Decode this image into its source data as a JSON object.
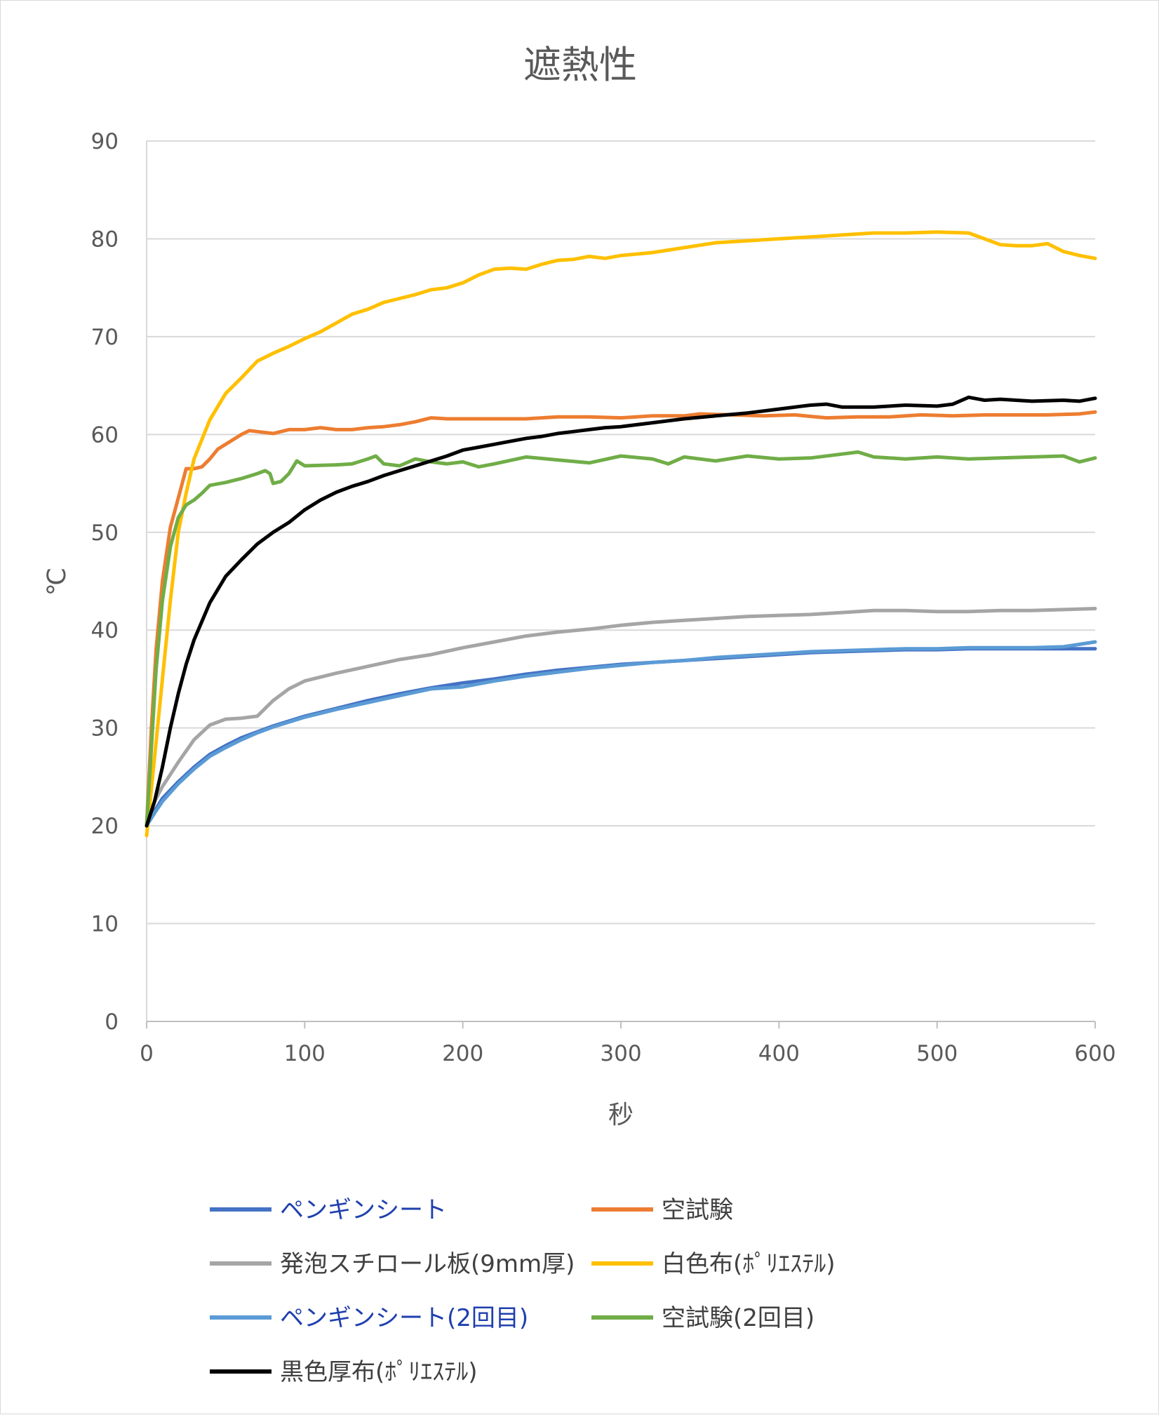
{
  "chart_data": {
    "type": "line",
    "title": "遮熱性",
    "xlabel": "秒",
    "ylabel": "℃",
    "xlim": [
      0,
      600
    ],
    "ylim": [
      0,
      90
    ],
    "xticks": [
      0,
      100,
      200,
      300,
      400,
      500,
      600
    ],
    "yticks": [
      0,
      10,
      20,
      30,
      40,
      50,
      60,
      70,
      80,
      90
    ],
    "grid": "horizontal",
    "legend_position": "bottom",
    "series": [
      {
        "name": "ペンギンシート",
        "color": "#4472c4",
        "label_color": "#1f3fae",
        "points": [
          [
            0,
            20
          ],
          [
            5,
            21.5
          ],
          [
            10,
            22.8
          ],
          [
            20,
            24.5
          ],
          [
            30,
            26
          ],
          [
            40,
            27.3
          ],
          [
            50,
            28.2
          ],
          [
            60,
            29
          ],
          [
            70,
            29.6
          ],
          [
            80,
            30.2
          ],
          [
            90,
            30.7
          ],
          [
            100,
            31.2
          ],
          [
            120,
            32
          ],
          [
            140,
            32.8
          ],
          [
            160,
            33.5
          ],
          [
            180,
            34.1
          ],
          [
            200,
            34.6
          ],
          [
            220,
            35
          ],
          [
            240,
            35.5
          ],
          [
            260,
            35.9
          ],
          [
            280,
            36.2
          ],
          [
            300,
            36.5
          ],
          [
            320,
            36.7
          ],
          [
            340,
            36.9
          ],
          [
            360,
            37.1
          ],
          [
            380,
            37.3
          ],
          [
            400,
            37.5
          ],
          [
            420,
            37.7
          ],
          [
            440,
            37.8
          ],
          [
            460,
            37.9
          ],
          [
            480,
            38
          ],
          [
            500,
            38
          ],
          [
            520,
            38.1
          ],
          [
            540,
            38.1
          ],
          [
            560,
            38.1
          ],
          [
            580,
            38.1
          ],
          [
            600,
            38.1
          ]
        ]
      },
      {
        "name": "空試験",
        "color": "#ed7d31",
        "points": [
          [
            0,
            20
          ],
          [
            3,
            30
          ],
          [
            6,
            38
          ],
          [
            10,
            45
          ],
          [
            15,
            50.5
          ],
          [
            20,
            53.5
          ],
          [
            25,
            56.5
          ],
          [
            30,
            56.5
          ],
          [
            35,
            56.7
          ],
          [
            40,
            57.5
          ],
          [
            45,
            58.5
          ],
          [
            50,
            59
          ],
          [
            60,
            60
          ],
          [
            65,
            60.4
          ],
          [
            70,
            60.3
          ],
          [
            80,
            60.1
          ],
          [
            90,
            60.5
          ],
          [
            100,
            60.5
          ],
          [
            110,
            60.7
          ],
          [
            120,
            60.5
          ],
          [
            130,
            60.5
          ],
          [
            140,
            60.7
          ],
          [
            150,
            60.8
          ],
          [
            160,
            61
          ],
          [
            170,
            61.3
          ],
          [
            180,
            61.7
          ],
          [
            190,
            61.6
          ],
          [
            200,
            61.6
          ],
          [
            220,
            61.6
          ],
          [
            240,
            61.6
          ],
          [
            260,
            61.8
          ],
          [
            280,
            61.8
          ],
          [
            300,
            61.7
          ],
          [
            320,
            61.9
          ],
          [
            340,
            61.9
          ],
          [
            350,
            62.1
          ],
          [
            370,
            62
          ],
          [
            390,
            61.9
          ],
          [
            410,
            62
          ],
          [
            430,
            61.7
          ],
          [
            450,
            61.8
          ],
          [
            470,
            61.8
          ],
          [
            490,
            62
          ],
          [
            510,
            61.9
          ],
          [
            530,
            62
          ],
          [
            550,
            62
          ],
          [
            570,
            62
          ],
          [
            590,
            62.1
          ],
          [
            600,
            62.3
          ]
        ]
      },
      {
        "name": "発泡スチロール板(9mm厚)",
        "color": "#a5a5a5",
        "points": [
          [
            0,
            20
          ],
          [
            5,
            22.5
          ],
          [
            10,
            24
          ],
          [
            20,
            26.5
          ],
          [
            30,
            28.8
          ],
          [
            40,
            30.3
          ],
          [
            50,
            30.9
          ],
          [
            60,
            31
          ],
          [
            70,
            31.2
          ],
          [
            80,
            32.8
          ],
          [
            90,
            34
          ],
          [
            100,
            34.8
          ],
          [
            120,
            35.6
          ],
          [
            140,
            36.3
          ],
          [
            160,
            37
          ],
          [
            180,
            37.5
          ],
          [
            200,
            38.2
          ],
          [
            220,
            38.8
          ],
          [
            240,
            39.4
          ],
          [
            260,
            39.8
          ],
          [
            280,
            40.1
          ],
          [
            300,
            40.5
          ],
          [
            320,
            40.8
          ],
          [
            340,
            41
          ],
          [
            360,
            41.2
          ],
          [
            380,
            41.4
          ],
          [
            400,
            41.5
          ],
          [
            420,
            41.6
          ],
          [
            440,
            41.8
          ],
          [
            460,
            42
          ],
          [
            480,
            42
          ],
          [
            500,
            41.9
          ],
          [
            520,
            41.9
          ],
          [
            540,
            42
          ],
          [
            560,
            42
          ],
          [
            580,
            42.1
          ],
          [
            600,
            42.2
          ]
        ]
      },
      {
        "name": "白色布(ﾎﾟﾘｴｽﾃﾙ)",
        "color": "#ffc000",
        "points": [
          [
            0,
            19
          ],
          [
            5,
            27
          ],
          [
            10,
            35
          ],
          [
            15,
            43
          ],
          [
            20,
            50
          ],
          [
            25,
            54
          ],
          [
            30,
            57.5
          ],
          [
            40,
            61.5
          ],
          [
            50,
            64.2
          ],
          [
            60,
            65.8
          ],
          [
            70,
            67.5
          ],
          [
            80,
            68.3
          ],
          [
            90,
            69
          ],
          [
            100,
            69.8
          ],
          [
            110,
            70.5
          ],
          [
            120,
            71.4
          ],
          [
            130,
            72.3
          ],
          [
            140,
            72.8
          ],
          [
            150,
            73.5
          ],
          [
            160,
            73.9
          ],
          [
            170,
            74.3
          ],
          [
            180,
            74.8
          ],
          [
            190,
            75
          ],
          [
            200,
            75.5
          ],
          [
            210,
            76.3
          ],
          [
            220,
            76.9
          ],
          [
            230,
            77
          ],
          [
            240,
            76.9
          ],
          [
            250,
            77.4
          ],
          [
            260,
            77.8
          ],
          [
            270,
            77.9
          ],
          [
            280,
            78.2
          ],
          [
            290,
            78
          ],
          [
            300,
            78.3
          ],
          [
            320,
            78.6
          ],
          [
            340,
            79.1
          ],
          [
            360,
            79.6
          ],
          [
            380,
            79.8
          ],
          [
            400,
            80
          ],
          [
            420,
            80.2
          ],
          [
            440,
            80.4
          ],
          [
            460,
            80.6
          ],
          [
            480,
            80.6
          ],
          [
            500,
            80.7
          ],
          [
            520,
            80.6
          ],
          [
            530,
            80
          ],
          [
            540,
            79.4
          ],
          [
            550,
            79.3
          ],
          [
            560,
            79.3
          ],
          [
            570,
            79.5
          ],
          [
            580,
            78.7
          ],
          [
            590,
            78.3
          ],
          [
            600,
            78
          ]
        ]
      },
      {
        "name": "ペンギンシート(2回目)",
        "color": "#5b9bd5",
        "label_color": "#1f3fae",
        "points": [
          [
            0,
            20
          ],
          [
            5,
            21.3
          ],
          [
            10,
            22.5
          ],
          [
            20,
            24.3
          ],
          [
            30,
            25.8
          ],
          [
            40,
            27.1
          ],
          [
            50,
            28
          ],
          [
            60,
            28.8
          ],
          [
            70,
            29.5
          ],
          [
            80,
            30.1
          ],
          [
            90,
            30.6
          ],
          [
            100,
            31.1
          ],
          [
            120,
            31.9
          ],
          [
            140,
            32.6
          ],
          [
            160,
            33.3
          ],
          [
            180,
            34
          ],
          [
            200,
            34.2
          ],
          [
            220,
            34.8
          ],
          [
            240,
            35.3
          ],
          [
            260,
            35.7
          ],
          [
            280,
            36.1
          ],
          [
            300,
            36.4
          ],
          [
            320,
            36.7
          ],
          [
            340,
            36.9
          ],
          [
            360,
            37.2
          ],
          [
            380,
            37.4
          ],
          [
            400,
            37.6
          ],
          [
            420,
            37.8
          ],
          [
            440,
            37.9
          ],
          [
            460,
            38
          ],
          [
            480,
            38.1
          ],
          [
            500,
            38.1
          ],
          [
            520,
            38.2
          ],
          [
            540,
            38.2
          ],
          [
            560,
            38.2
          ],
          [
            580,
            38.3
          ],
          [
            600,
            38.8
          ]
        ]
      },
      {
        "name": "空試験(2回目)",
        "color": "#70ad47",
        "points": [
          [
            0,
            20
          ],
          [
            3,
            28
          ],
          [
            6,
            36
          ],
          [
            10,
            43
          ],
          [
            15,
            48.5
          ],
          [
            20,
            51.5
          ],
          [
            25,
            52.8
          ],
          [
            30,
            53.3
          ],
          [
            35,
            54
          ],
          [
            40,
            54.8
          ],
          [
            50,
            55.1
          ],
          [
            60,
            55.5
          ],
          [
            70,
            56
          ],
          [
            75,
            56.3
          ],
          [
            78,
            56
          ],
          [
            80,
            55
          ],
          [
            85,
            55.2
          ],
          [
            90,
            56
          ],
          [
            95,
            57.3
          ],
          [
            100,
            56.8
          ],
          [
            120,
            56.9
          ],
          [
            130,
            57
          ],
          [
            140,
            57.5
          ],
          [
            145,
            57.8
          ],
          [
            150,
            57
          ],
          [
            160,
            56.8
          ],
          [
            170,
            57.5
          ],
          [
            180,
            57.2
          ],
          [
            190,
            57
          ],
          [
            200,
            57.2
          ],
          [
            210,
            56.7
          ],
          [
            220,
            57
          ],
          [
            240,
            57.7
          ],
          [
            260,
            57.4
          ],
          [
            280,
            57.1
          ],
          [
            300,
            57.8
          ],
          [
            320,
            57.5
          ],
          [
            330,
            57
          ],
          [
            340,
            57.7
          ],
          [
            360,
            57.3
          ],
          [
            380,
            57.8
          ],
          [
            400,
            57.5
          ],
          [
            420,
            57.6
          ],
          [
            440,
            58
          ],
          [
            450,
            58.2
          ],
          [
            460,
            57.7
          ],
          [
            480,
            57.5
          ],
          [
            500,
            57.7
          ],
          [
            520,
            57.5
          ],
          [
            540,
            57.6
          ],
          [
            560,
            57.7
          ],
          [
            580,
            57.8
          ],
          [
            590,
            57.2
          ],
          [
            600,
            57.6
          ]
        ]
      },
      {
        "name": "黒色厚布(ﾎﾟﾘｴｽﾃﾙ)",
        "color": "#000000",
        "points": [
          [
            0,
            20
          ],
          [
            5,
            22.5
          ],
          [
            10,
            26
          ],
          [
            15,
            30
          ],
          [
            20,
            33.5
          ],
          [
            25,
            36.5
          ],
          [
            30,
            39
          ],
          [
            40,
            42.8
          ],
          [
            50,
            45.5
          ],
          [
            60,
            47.2
          ],
          [
            70,
            48.8
          ],
          [
            80,
            50
          ],
          [
            90,
            51
          ],
          [
            100,
            52.3
          ],
          [
            110,
            53.3
          ],
          [
            120,
            54.1
          ],
          [
            130,
            54.7
          ],
          [
            140,
            55.2
          ],
          [
            150,
            55.8
          ],
          [
            160,
            56.3
          ],
          [
            170,
            56.8
          ],
          [
            180,
            57.3
          ],
          [
            190,
            57.8
          ],
          [
            200,
            58.4
          ],
          [
            210,
            58.7
          ],
          [
            220,
            59
          ],
          [
            230,
            59.3
          ],
          [
            240,
            59.6
          ],
          [
            250,
            59.8
          ],
          [
            260,
            60.1
          ],
          [
            270,
            60.3
          ],
          [
            280,
            60.5
          ],
          [
            290,
            60.7
          ],
          [
            300,
            60.8
          ],
          [
            320,
            61.2
          ],
          [
            340,
            61.6
          ],
          [
            360,
            61.9
          ],
          [
            380,
            62.2
          ],
          [
            400,
            62.6
          ],
          [
            420,
            63
          ],
          [
            430,
            63.1
          ],
          [
            440,
            62.8
          ],
          [
            460,
            62.8
          ],
          [
            480,
            63
          ],
          [
            500,
            62.9
          ],
          [
            510,
            63.1
          ],
          [
            520,
            63.8
          ],
          [
            530,
            63.5
          ],
          [
            540,
            63.6
          ],
          [
            560,
            63.4
          ],
          [
            580,
            63.5
          ],
          [
            590,
            63.4
          ],
          [
            600,
            63.7
          ]
        ]
      }
    ]
  }
}
